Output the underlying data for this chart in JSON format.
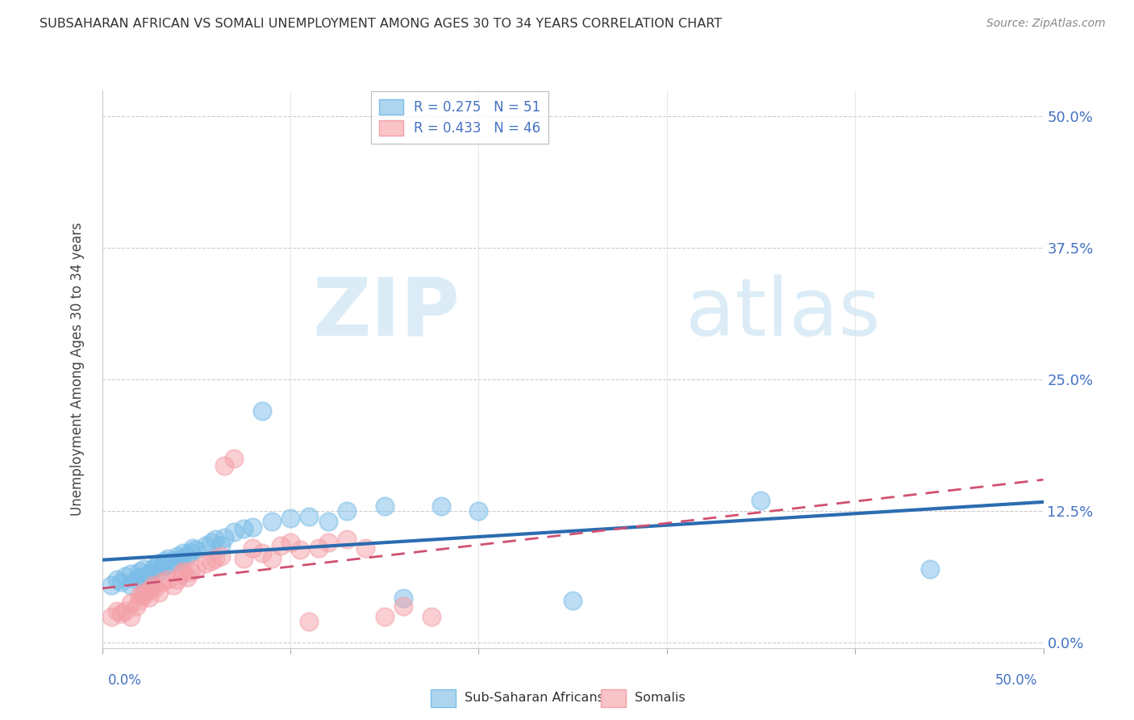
{
  "title": "SUBSAHARAN AFRICAN VS SOMALI UNEMPLOYMENT AMONG AGES 30 TO 34 YEARS CORRELATION CHART",
  "source": "Source: ZipAtlas.com",
  "ylabel": "Unemployment Among Ages 30 to 34 years",
  "xlim": [
    0.0,
    0.5
  ],
  "ylim": [
    -0.005,
    0.525
  ],
  "ytick_labels": [
    "0.0%",
    "12.5%",
    "25.0%",
    "37.5%",
    "50.0%"
  ],
  "ytick_values": [
    0.0,
    0.125,
    0.25,
    0.375,
    0.5
  ],
  "grid_color": "#cccccc",
  "background_color": "#ffffff",
  "series1_color": "#7abde8",
  "series2_color": "#f4a0a8",
  "series1_line_color": "#2b6cb0",
  "series2_line_color": "#d05070",
  "series1_label": "Sub-Saharan Africans",
  "series2_label": "Somalis",
  "watermark_zip": "ZIP",
  "watermark_atlas": "atlas",
  "series1_x": [
    0.005,
    0.008,
    0.01,
    0.012,
    0.015,
    0.015,
    0.018,
    0.02,
    0.02,
    0.022,
    0.022,
    0.025,
    0.025,
    0.027,
    0.028,
    0.03,
    0.03,
    0.032,
    0.033,
    0.035,
    0.035,
    0.038,
    0.04,
    0.04,
    0.042,
    0.043,
    0.045,
    0.047,
    0.048,
    0.05,
    0.055,
    0.058,
    0.06,
    0.063,
    0.065,
    0.07,
    0.075,
    0.08,
    0.085,
    0.09,
    0.1,
    0.11,
    0.12,
    0.13,
    0.15,
    0.16,
    0.18,
    0.2,
    0.25,
    0.35,
    0.44
  ],
  "series1_y": [
    0.055,
    0.06,
    0.058,
    0.063,
    0.065,
    0.055,
    0.06,
    0.062,
    0.068,
    0.063,
    0.07,
    0.065,
    0.058,
    0.07,
    0.072,
    0.068,
    0.075,
    0.072,
    0.078,
    0.074,
    0.08,
    0.078,
    0.076,
    0.082,
    0.08,
    0.085,
    0.082,
    0.086,
    0.09,
    0.088,
    0.092,
    0.095,
    0.098,
    0.092,
    0.1,
    0.105,
    0.108,
    0.11,
    0.22,
    0.115,
    0.118,
    0.12,
    0.115,
    0.125,
    0.13,
    0.042,
    0.13,
    0.125,
    0.04,
    0.135,
    0.07
  ],
  "series2_x": [
    0.005,
    0.008,
    0.01,
    0.012,
    0.015,
    0.015,
    0.018,
    0.02,
    0.02,
    0.022,
    0.022,
    0.025,
    0.025,
    0.027,
    0.028,
    0.03,
    0.032,
    0.035,
    0.038,
    0.04,
    0.042,
    0.043,
    0.045,
    0.047,
    0.05,
    0.055,
    0.058,
    0.06,
    0.063,
    0.065,
    0.07,
    0.075,
    0.08,
    0.085,
    0.09,
    0.095,
    0.1,
    0.105,
    0.11,
    0.115,
    0.12,
    0.13,
    0.14,
    0.15,
    0.16,
    0.175
  ],
  "series2_y": [
    0.025,
    0.03,
    0.028,
    0.03,
    0.025,
    0.038,
    0.035,
    0.04,
    0.045,
    0.045,
    0.048,
    0.043,
    0.05,
    0.055,
    0.052,
    0.048,
    0.058,
    0.06,
    0.055,
    0.06,
    0.065,
    0.068,
    0.062,
    0.068,
    0.07,
    0.075,
    0.078,
    0.08,
    0.082,
    0.168,
    0.175,
    0.08,
    0.09,
    0.085,
    0.08,
    0.092,
    0.095,
    0.088,
    0.02,
    0.09,
    0.095,
    0.098,
    0.09,
    0.025,
    0.035,
    0.025
  ]
}
